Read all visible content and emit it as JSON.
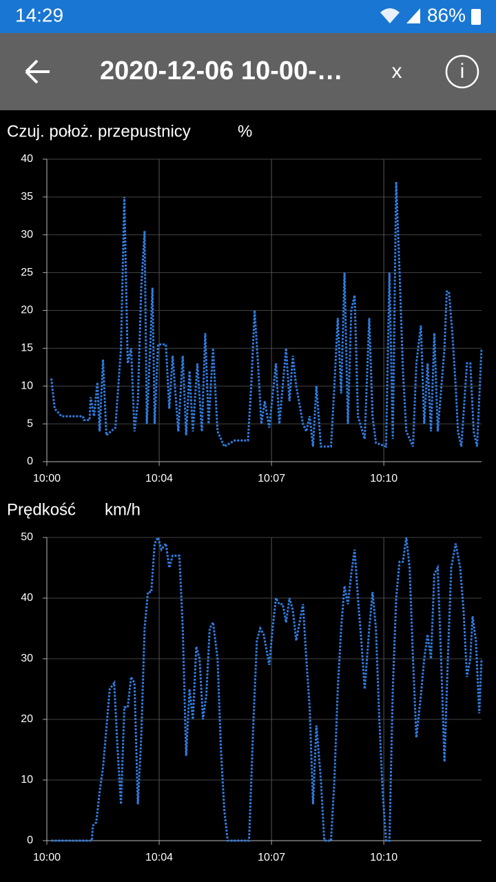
{
  "status_bar": {
    "time": "14:29",
    "battery": "86%"
  },
  "toolbar": {
    "title": "2020-12-06 10-00-…",
    "close": "x",
    "info": "i"
  },
  "chart_data": [
    {
      "type": "line",
      "title": "Czuj. położ. przepustnicy",
      "unit": "%",
      "color": "#2f7de1",
      "xlim": [
        0,
        387
      ],
      "xticks": [
        {
          "value": 0,
          "label": "10:00"
        },
        {
          "value": 100,
          "label": "10:04"
        },
        {
          "value": 200,
          "label": "10:07"
        },
        {
          "value": 300,
          "label": "10:10"
        }
      ],
      "ylim": [
        0,
        40
      ],
      "yticks": [
        0,
        5,
        10,
        15,
        20,
        25,
        30,
        35,
        40
      ],
      "grid": true,
      "x": [
        4,
        7,
        13,
        32,
        33,
        38,
        39,
        42,
        45,
        47,
        50,
        53,
        61,
        66,
        69,
        72,
        75,
        78,
        81,
        84,
        87,
        89,
        92,
        94,
        96,
        99,
        106,
        109,
        112,
        117,
        121,
        124,
        127,
        130,
        134,
        138,
        141,
        144,
        148,
        152,
        158,
        167,
        179,
        182,
        185,
        188,
        191,
        194,
        198,
        204,
        207,
        210,
        213,
        216,
        219,
        222,
        228,
        231,
        234,
        237,
        240,
        244,
        253,
        256,
        259,
        262,
        265,
        268,
        271,
        274,
        277,
        283,
        287,
        290,
        293,
        302,
        305,
        308,
        311,
        314,
        317,
        320,
        326,
        329,
        333,
        336,
        339,
        342,
        345,
        348,
        354,
        356,
        358,
        361,
        364,
        366,
        369,
        374,
        377,
        380,
        383,
        387
      ],
      "values": [
        11,
        7,
        6,
        6,
        5.5,
        5.5,
        8.5,
        6,
        10.5,
        4,
        13.5,
        3.5,
        4.5,
        15,
        35,
        13,
        15,
        4,
        8,
        23,
        30.5,
        5,
        15,
        23,
        5,
        15.5,
        15.5,
        7,
        14,
        4,
        14,
        3.5,
        12,
        4,
        13,
        4,
        17,
        5,
        15,
        4,
        2,
        2.8,
        2.8,
        10,
        20,
        13,
        5,
        8,
        4.5,
        13,
        5,
        10,
        15,
        8,
        14,
        10,
        5,
        4,
        6,
        2,
        10,
        2,
        2,
        10,
        19,
        9,
        25,
        5,
        20,
        22,
        6,
        3,
        19,
        6,
        2.5,
        2,
        25,
        3,
        37,
        25,
        12,
        4,
        2,
        13,
        18,
        5,
        13,
        4,
        17,
        4,
        15,
        22.5,
        22.5,
        17,
        10,
        4,
        2,
        13,
        13,
        4,
        2,
        15
      ]
    },
    {
      "type": "line",
      "title": "Prędkość",
      "unit": "km/h",
      "color": "#2f7de1",
      "xlim": [
        0,
        387
      ],
      "xticks": [
        {
          "value": 0,
          "label": "10:00"
        },
        {
          "value": 100,
          "label": "10:04"
        },
        {
          "value": 200,
          "label": "10:07"
        },
        {
          "value": 300,
          "label": "10:10"
        }
      ],
      "ylim": [
        0,
        50
      ],
      "yticks": [
        0,
        10,
        20,
        30,
        40,
        50
      ],
      "grid": true,
      "x": [
        4,
        40,
        41,
        44,
        47,
        50,
        56,
        60,
        63,
        66,
        69,
        72,
        75,
        78,
        81,
        84,
        87,
        90,
        93,
        96,
        99,
        102,
        106,
        109,
        112,
        118,
        121,
        124,
        127,
        130,
        133,
        136,
        139,
        142,
        145,
        148,
        152,
        155,
        158,
        161,
        180,
        184,
        187,
        190,
        193,
        198,
        201,
        204,
        207,
        210,
        213,
        216,
        219,
        222,
        225,
        228,
        231,
        234,
        237,
        240,
        244,
        247,
        253,
        256,
        259,
        262,
        265,
        268,
        271,
        274,
        277,
        280,
        283,
        287,
        290,
        293,
        296,
        299,
        302,
        305,
        308,
        311,
        314,
        317,
        320,
        323,
        326,
        329,
        333,
        336,
        339,
        342,
        345,
        348,
        351,
        354,
        357,
        360,
        364,
        368,
        371,
        374,
        377,
        379,
        382,
        385,
        387
      ],
      "values": [
        0,
        0,
        2.5,
        3,
        8,
        12,
        25,
        26,
        15,
        6,
        22,
        22,
        27,
        26,
        6,
        17,
        35,
        41,
        41,
        49,
        50,
        48,
        49,
        45,
        47,
        47,
        35,
        14,
        25,
        20,
        32,
        30,
        20,
        24,
        35,
        36,
        30,
        15,
        5,
        0,
        0,
        20,
        33,
        35,
        34,
        29,
        35,
        40,
        39,
        39,
        36,
        40,
        38,
        33,
        36,
        39,
        30,
        22,
        6,
        19,
        10,
        0,
        0,
        10,
        25,
        35,
        42,
        39,
        44,
        48,
        40,
        33,
        25,
        35,
        41,
        35,
        20,
        8,
        0,
        0,
        25,
        40,
        46,
        46,
        50,
        45,
        30,
        17,
        24,
        30,
        34,
        30,
        44,
        45,
        30,
        13,
        30,
        45,
        49,
        45,
        38,
        27,
        30,
        37,
        33,
        21,
        30
      ]
    }
  ]
}
